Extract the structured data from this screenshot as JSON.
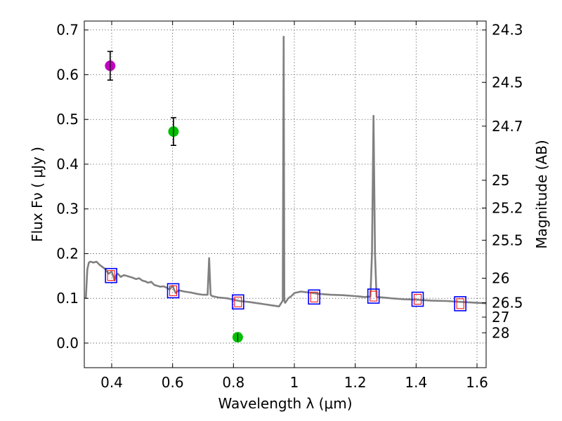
{
  "chart_data": {
    "type": "scatter",
    "title": "",
    "xlabel": "Wavelength  λ (μm)",
    "ylabel": "Flux  Fν  ( μJy )",
    "y2label": "Magnitude (AB)",
    "xlim": [
      0.31,
      1.63
    ],
    "ylim": [
      -0.055,
      0.72
    ],
    "xticks": [
      0.4,
      0.6,
      0.8,
      1.0,
      1.2,
      1.4,
      1.6
    ],
    "xtick_labels": [
      "0.4",
      "0.6",
      "0.8",
      "1",
      "1.2",
      "1.4",
      "1.6"
    ],
    "yticks": [
      0.0,
      0.1,
      0.2,
      0.3,
      0.4,
      0.5,
      0.6,
      0.7
    ],
    "ytick_labels": [
      "0.0",
      "0.1",
      "0.2",
      "0.3",
      "0.4",
      "0.5",
      "0.6",
      "0.7"
    ],
    "y2_ticks": [
      {
        "label": "24.3",
        "flux": 0.7
      },
      {
        "label": "24.5",
        "flux": 0.583
      },
      {
        "label": "24.7",
        "flux": 0.485
      },
      {
        "label": "25",
        "flux": 0.364
      },
      {
        "label": "25.2",
        "flux": 0.302
      },
      {
        "label": "25.5",
        "flux": 0.23
      },
      {
        "label": "26",
        "flux": 0.145
      },
      {
        "label": "26.5",
        "flux": 0.09
      },
      {
        "label": "27",
        "flux": 0.058
      },
      {
        "label": "28",
        "flux": 0.023
      }
    ],
    "grid": true,
    "colors": {
      "model": "#808080",
      "model_box": "#0000ff",
      "model_inner": "#ff0000",
      "magenta": "#bf00bf",
      "green": "#00c000",
      "errorbar": "#000000"
    },
    "series": [
      {
        "kind": "line",
        "x": [
          0.315,
          0.32,
          0.325,
          0.33,
          0.34,
          0.35,
          0.36,
          0.37,
          0.38,
          0.39,
          0.4,
          0.41,
          0.415,
          0.42,
          0.43,
          0.44,
          0.45,
          0.46,
          0.47,
          0.48,
          0.49,
          0.5,
          0.51,
          0.52,
          0.53,
          0.54,
          0.55,
          0.56,
          0.57,
          0.58,
          0.59,
          0.6,
          0.61,
          0.62,
          0.64,
          0.66,
          0.68,
          0.7,
          0.715,
          0.72,
          0.725,
          0.73,
          0.75,
          0.78,
          0.8,
          0.82,
          0.85,
          0.88,
          0.9,
          0.92,
          0.95,
          0.962,
          0.965,
          0.967,
          0.97,
          0.98,
          0.99,
          1.0,
          1.02,
          1.05,
          1.08,
          1.12,
          1.16,
          1.2,
          1.23,
          1.25,
          1.255,
          1.26,
          1.265,
          1.27,
          1.29,
          1.32,
          1.36,
          1.4,
          1.45,
          1.5,
          1.55,
          1.6,
          1.63
        ],
        "y": [
          0.1,
          0.165,
          0.18,
          0.182,
          0.18,
          0.182,
          0.175,
          0.17,
          0.165,
          0.155,
          0.16,
          0.14,
          0.152,
          0.155,
          0.148,
          0.152,
          0.15,
          0.148,
          0.146,
          0.143,
          0.145,
          0.14,
          0.138,
          0.135,
          0.137,
          0.13,
          0.128,
          0.126,
          0.127,
          0.124,
          0.12,
          0.128,
          0.112,
          0.118,
          0.115,
          0.113,
          0.11,
          0.108,
          0.108,
          0.19,
          0.108,
          0.105,
          0.102,
          0.1,
          0.097,
          0.094,
          0.092,
          0.089,
          0.087,
          0.085,
          0.082,
          0.095,
          0.685,
          0.095,
          0.09,
          0.1,
          0.105,
          0.112,
          0.115,
          0.113,
          0.11,
          0.108,
          0.107,
          0.105,
          0.103,
          0.104,
          0.2,
          0.508,
          0.2,
          0.103,
          0.102,
          0.1,
          0.098,
          0.097,
          0.095,
          0.094,
          0.092,
          0.09,
          0.089
        ]
      },
      {
        "kind": "model_photometry",
        "x": [
          0.398,
          0.602,
          0.815,
          1.065,
          1.26,
          1.405,
          1.545
        ],
        "y": [
          0.151,
          0.117,
          0.092,
          0.103,
          0.105,
          0.098,
          0.088
        ]
      },
      {
        "kind": "observed",
        "points": [
          {
            "x": 0.395,
            "y": 0.62,
            "err": 0.032,
            "color": "magenta"
          },
          {
            "x": 0.603,
            "y": 0.473,
            "err": 0.031,
            "color": "green"
          },
          {
            "x": 0.814,
            "y": 0.013,
            "err": 0.009,
            "color": "green"
          }
        ]
      }
    ]
  }
}
